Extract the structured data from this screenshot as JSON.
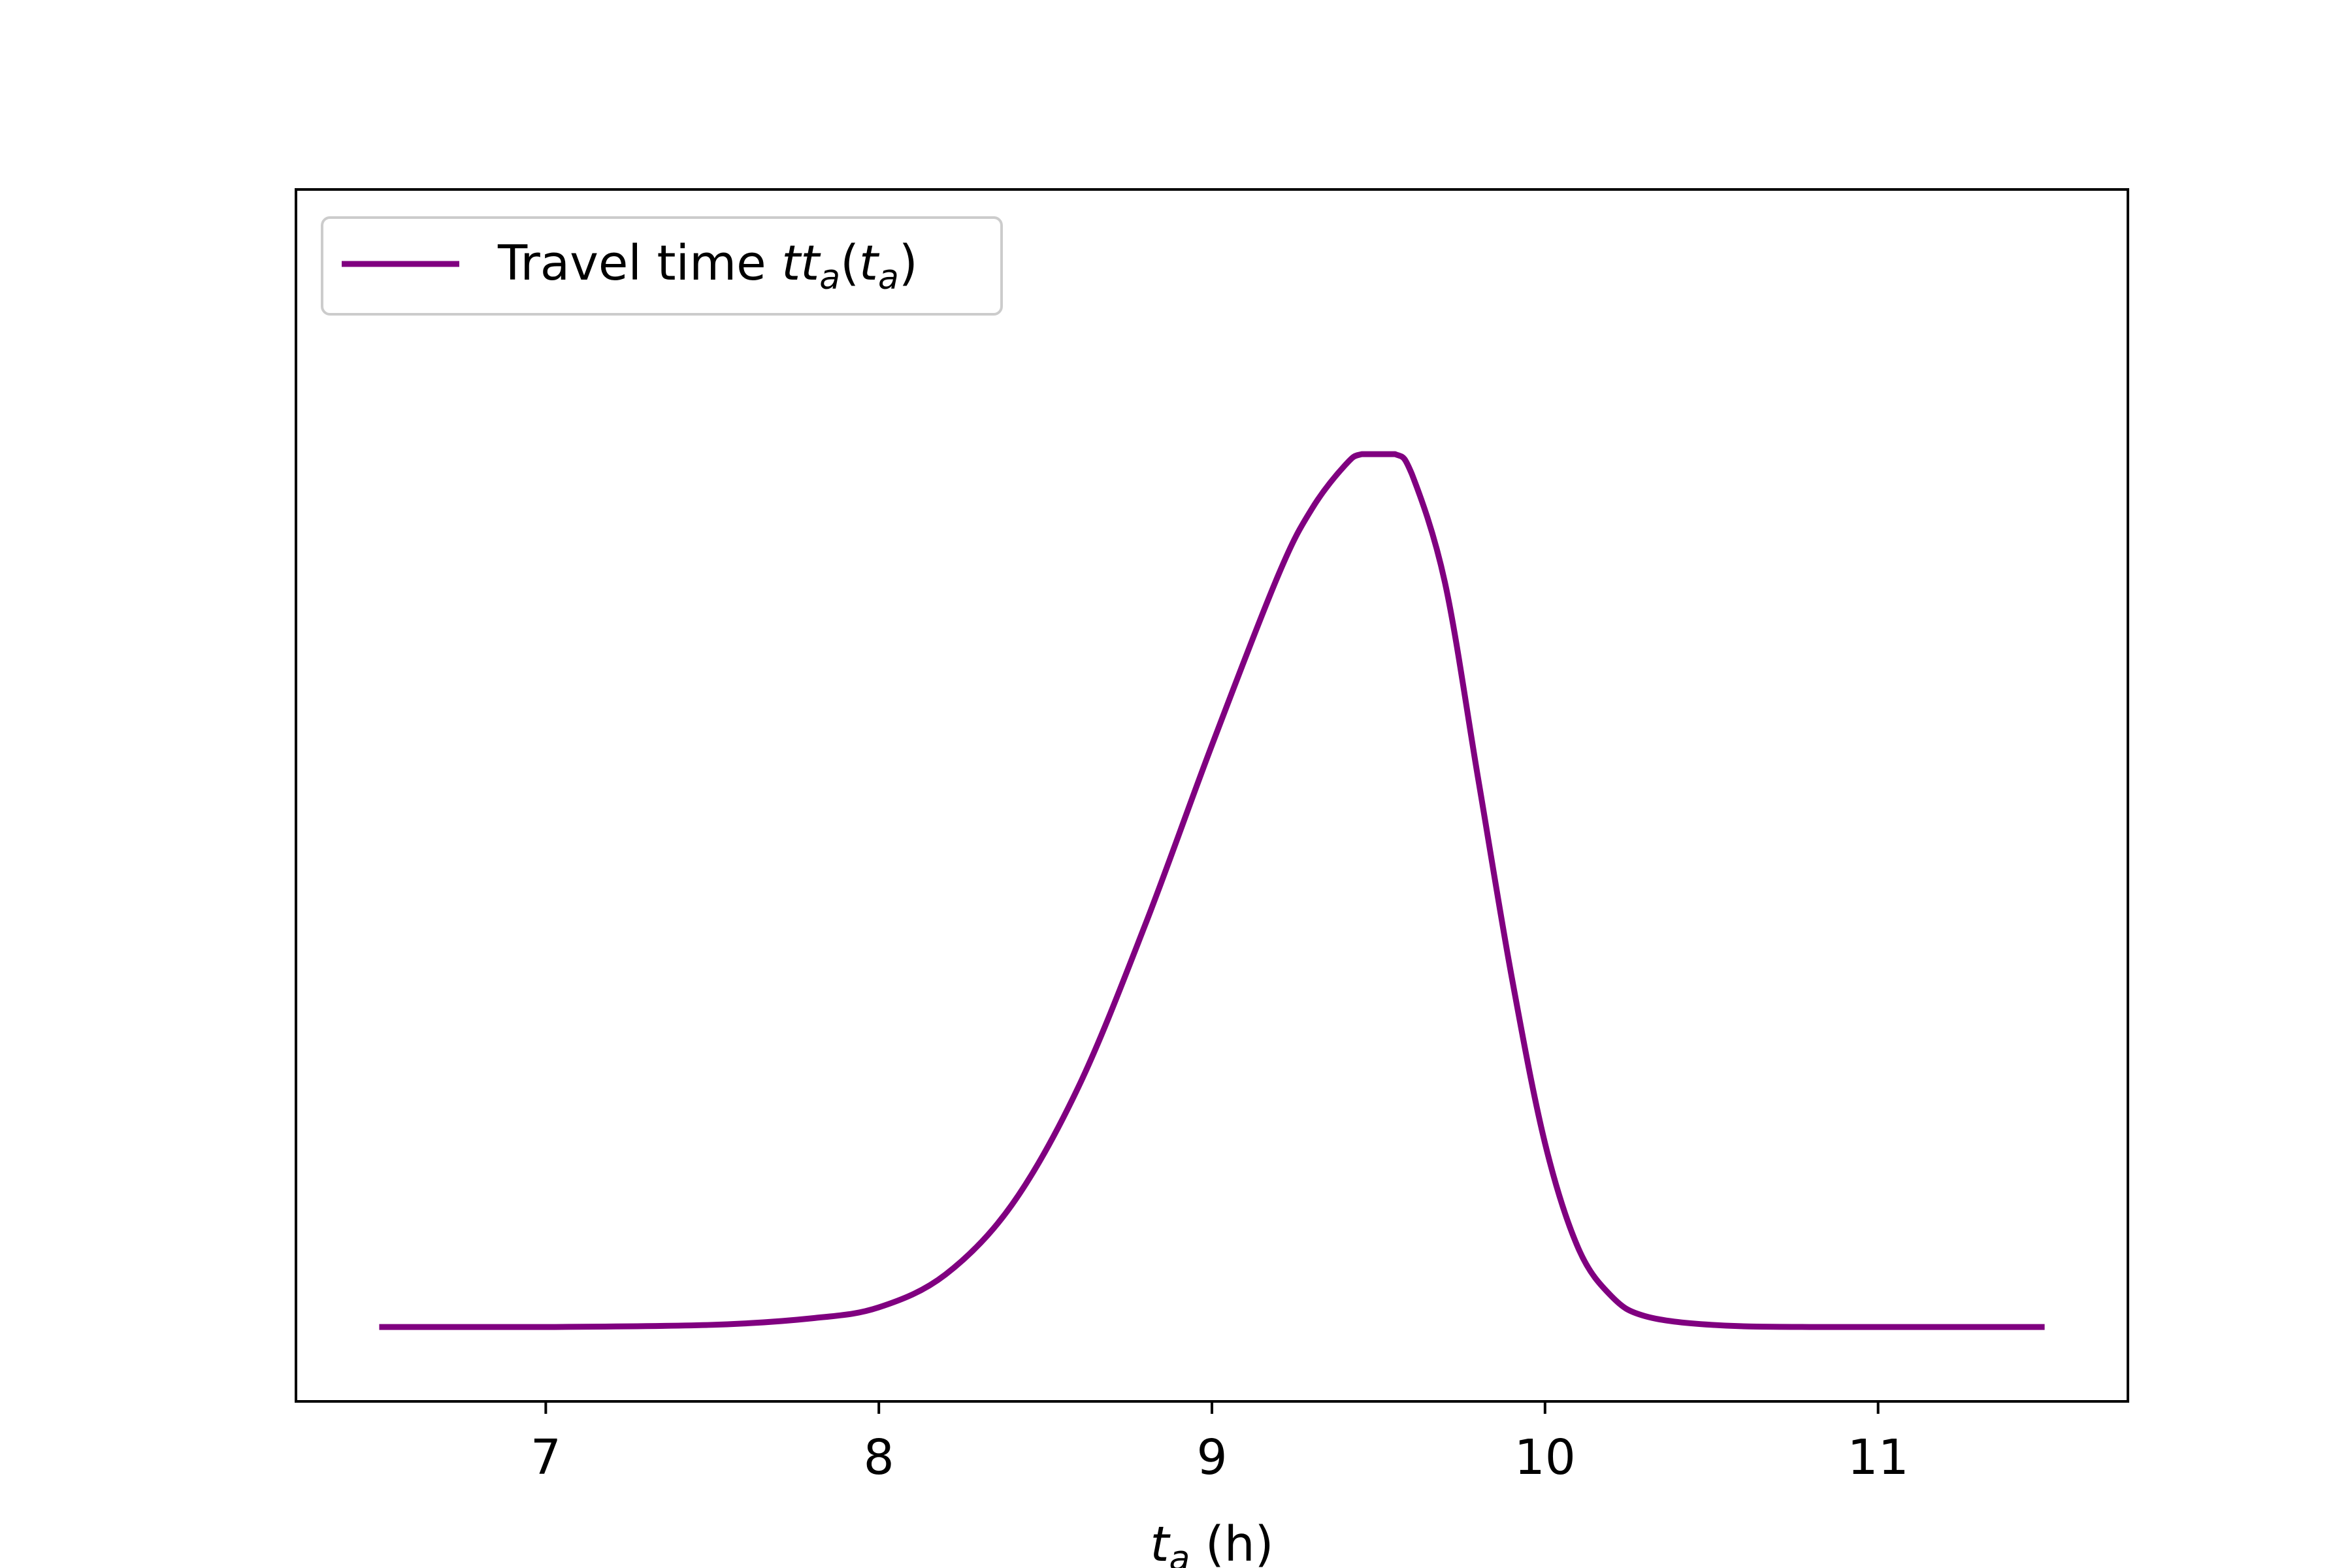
{
  "chart_data": {
    "type": "line",
    "title": "",
    "xlabel": {
      "var": "t",
      "sub": "a",
      "unit": " (h)"
    },
    "ylabel": "",
    "xlim": [
      6.25,
      11.75
    ],
    "ylim": [
      -0.17,
      2.6
    ],
    "xticks": [
      7,
      8,
      9,
      10,
      11
    ],
    "x_tick_labels": [
      "7",
      "8",
      "9",
      "10",
      "11"
    ],
    "yticks": [],
    "grid": false,
    "legend": {
      "placement": "top-left",
      "entries": [
        {
          "text": "Travel time ",
          "math": [
            "t",
            "t",
            "a",
            "(",
            "t",
            "a",
            ")"
          ]
        }
      ]
    },
    "series": [
      {
        "name": "Travel time tt_a(t_a)",
        "color": "#800080",
        "x": [
          6.5,
          7.0,
          7.5,
          7.8,
          8.0,
          8.2,
          8.4,
          8.6,
          8.8,
          9.0,
          9.2,
          9.3,
          9.4,
          9.45,
          9.55,
          9.6,
          9.7,
          9.8,
          9.9,
          10.0,
          10.1,
          10.2,
          10.3,
          10.5,
          10.8,
          11.5
        ],
        "y": [
          0.0,
          0.0,
          0.005,
          0.02,
          0.045,
          0.12,
          0.28,
          0.55,
          0.92,
          1.33,
          1.72,
          1.87,
          1.97,
          1.995,
          1.995,
          1.95,
          1.7,
          1.25,
          0.8,
          0.42,
          0.18,
          0.07,
          0.025,
          0.005,
          0.0,
          0.0
        ]
      }
    ]
  }
}
